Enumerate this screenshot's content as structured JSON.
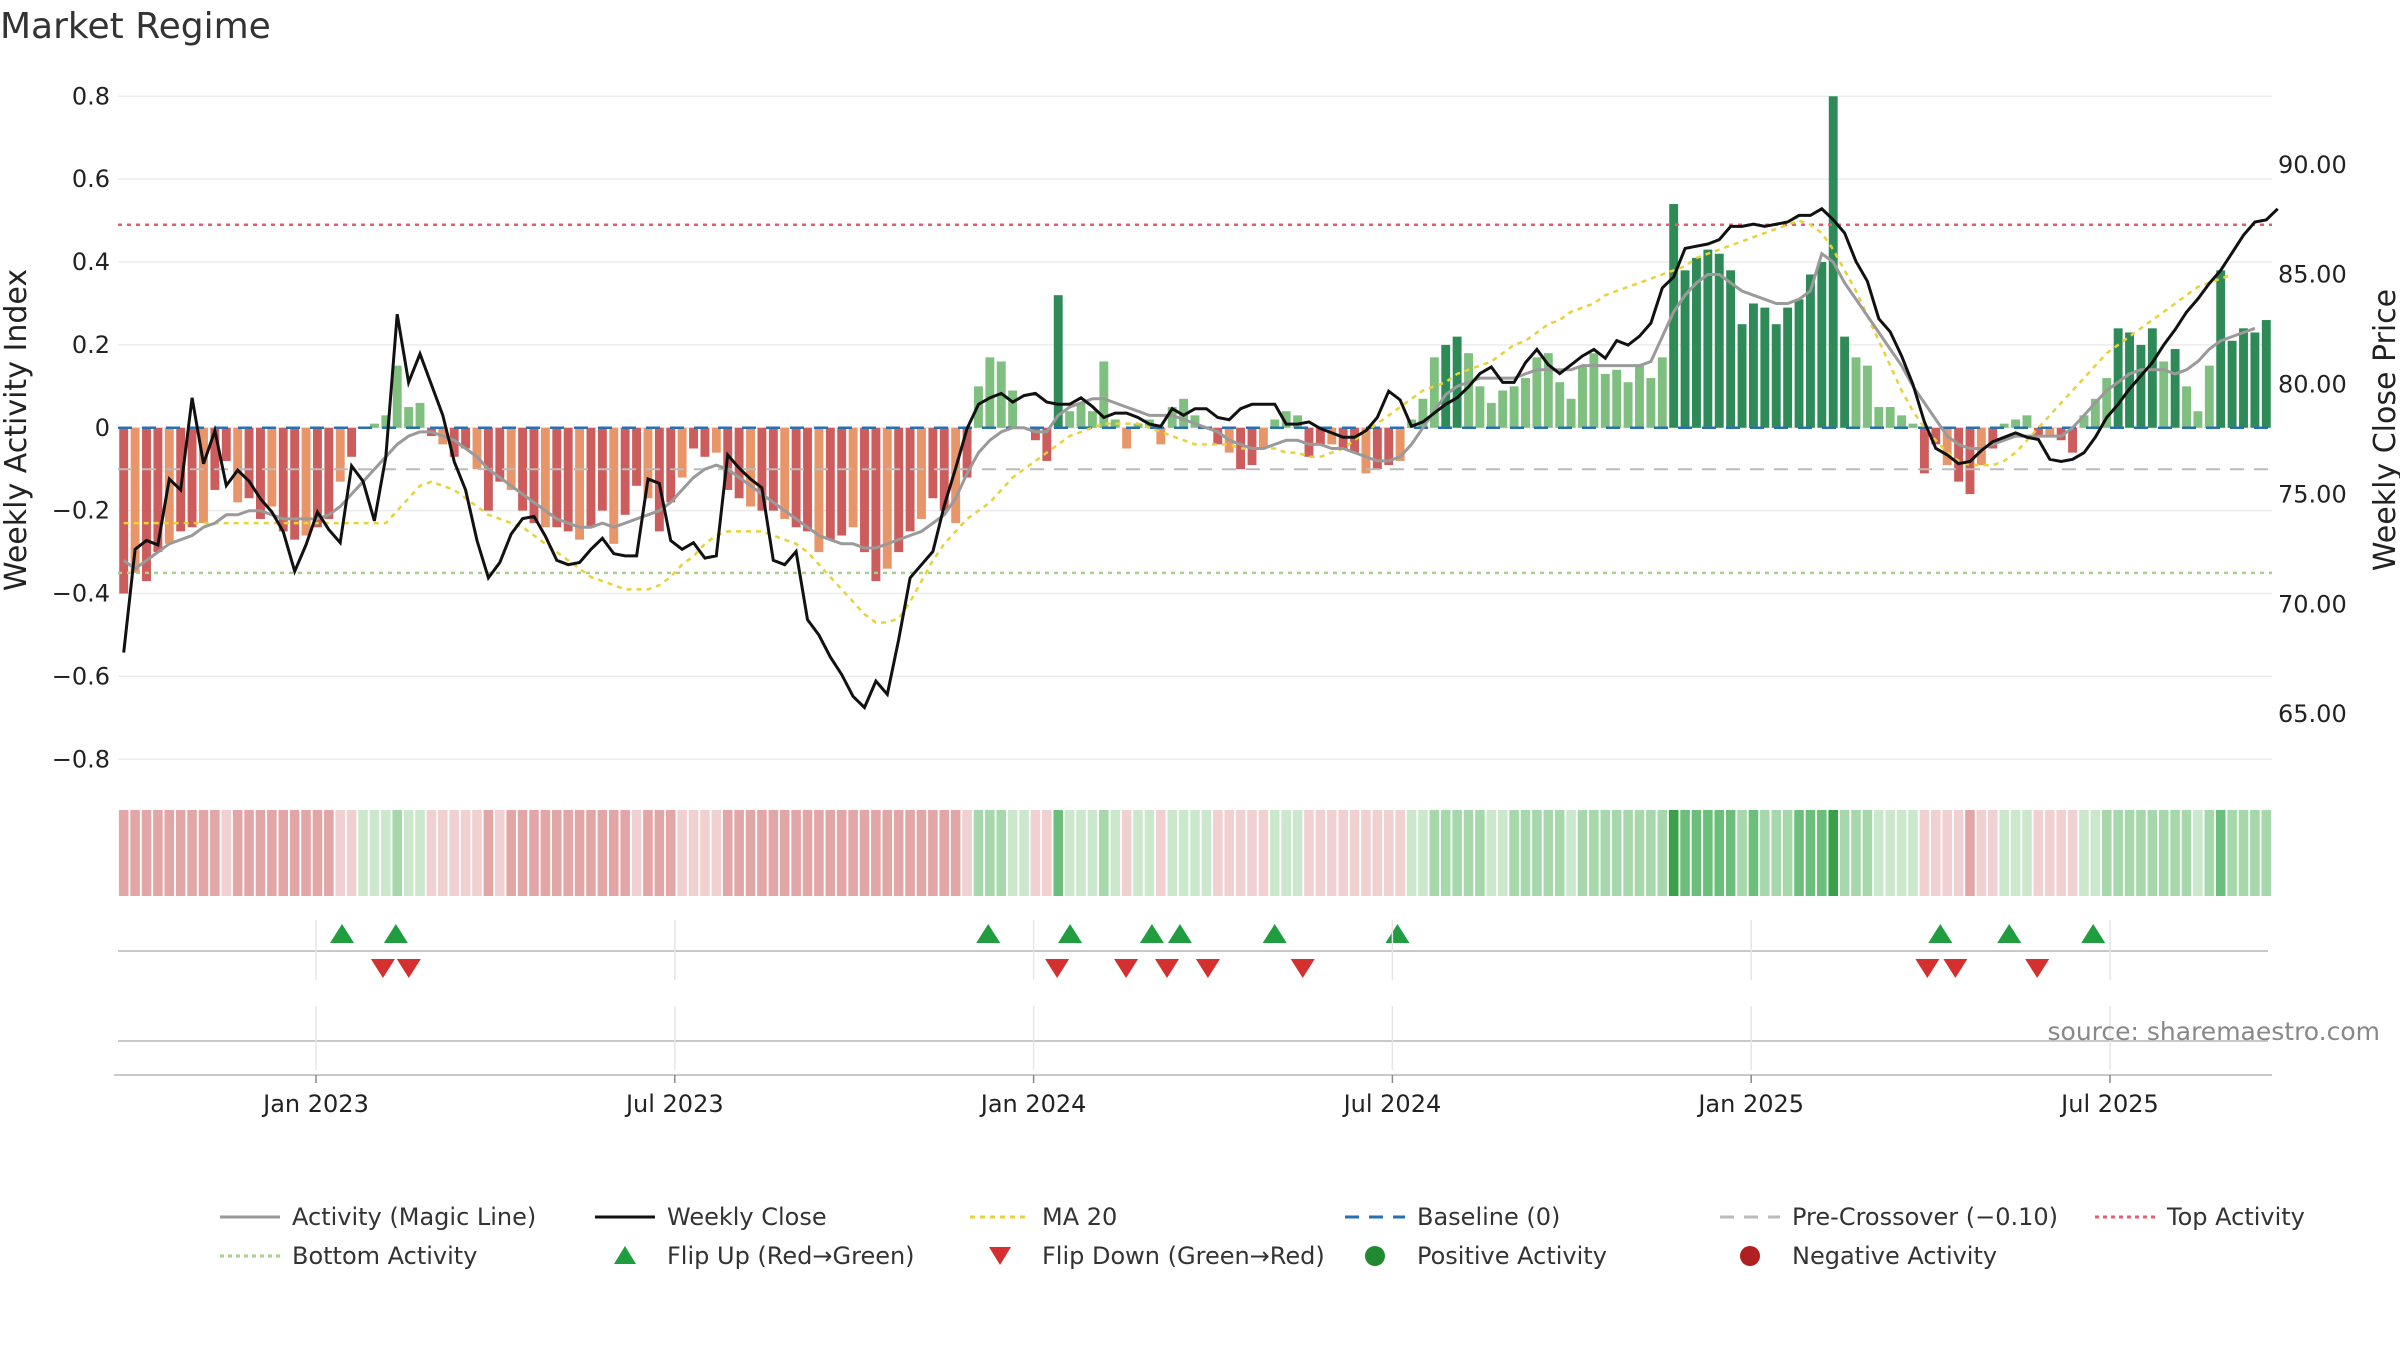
{
  "chart_data": {
    "type": "bar",
    "title": "Market Regime",
    "ylabel_left": "Weekly Activity Index",
    "ylabel_right": "Weekly Close Price",
    "left_ylim": [
      -0.85,
      0.82
    ],
    "right_ylim": [
      62.0,
      93.5
    ],
    "left_ticks": [
      "0.8",
      "0.6",
      "0.4",
      "0.2",
      "0",
      "−0.2",
      "−0.4",
      "−0.6",
      "−0.8"
    ],
    "right_ticks": [
      "65.00",
      "70.00",
      "75.00",
      "80.00",
      "85.00",
      "90.00"
    ],
    "x_ticks": [
      "Jan 2023",
      "Jul 2023",
      "Jan 2024",
      "Jul 2024",
      "Jan 2025",
      "Jul 2025"
    ],
    "reference_lines": {
      "baseline": 0,
      "pre_crossover": -0.1,
      "top_activity": 0.49,
      "bottom_activity": -0.35
    },
    "activity": [
      -0.4,
      -0.35,
      -0.37,
      -0.3,
      -0.28,
      -0.25,
      -0.24,
      -0.23,
      -0.15,
      -0.08,
      -0.18,
      -0.17,
      -0.22,
      -0.19,
      -0.25,
      -0.27,
      -0.26,
      -0.24,
      -0.22,
      -0.13,
      -0.07,
      0.0,
      0.01,
      0.03,
      0.15,
      0.05,
      0.06,
      -0.02,
      -0.04,
      -0.07,
      -0.05,
      -0.1,
      -0.2,
      -0.13,
      -0.15,
      -0.2,
      -0.23,
      -0.24,
      -0.24,
      -0.25,
      -0.27,
      -0.24,
      -0.2,
      -0.28,
      -0.21,
      -0.14,
      -0.17,
      -0.25,
      -0.18,
      -0.12,
      -0.05,
      -0.07,
      -0.06,
      -0.15,
      -0.17,
      -0.19,
      -0.2,
      -0.2,
      -0.22,
      -0.24,
      -0.25,
      -0.3,
      -0.27,
      -0.26,
      -0.24,
      -0.3,
      -0.37,
      -0.34,
      -0.3,
      -0.25,
      -0.22,
      -0.17,
      -0.2,
      -0.23,
      -0.12,
      0.1,
      0.17,
      0.16,
      0.09,
      0.0,
      -0.03,
      -0.08,
      0.32,
      0.04,
      0.06,
      0.04,
      0.16,
      0.02,
      -0.05,
      0.01,
      0.02,
      -0.04,
      0.05,
      0.07,
      0.03,
      0.0,
      -0.04,
      -0.06,
      -0.1,
      -0.09,
      -0.05,
      0.02,
      0.04,
      0.03,
      -0.07,
      -0.04,
      -0.04,
      -0.05,
      -0.06,
      -0.11,
      -0.1,
      -0.09,
      -0.08,
      0.02,
      0.07,
      0.17,
      0.2,
      0.22,
      0.18,
      0.1,
      0.06,
      0.09,
      0.1,
      0.12,
      0.17,
      0.18,
      0.11,
      0.07,
      0.15,
      0.18,
      0.13,
      0.14,
      0.11,
      0.15,
      0.12,
      0.17,
      0.54,
      0.38,
      0.41,
      0.43,
      0.42,
      0.38,
      0.25,
      0.3,
      0.29,
      0.25,
      0.29,
      0.31,
      0.37,
      0.4,
      0.8,
      0.22,
      0.17,
      0.15,
      0.05,
      0.05,
      0.03,
      0.01,
      -0.11,
      -0.04,
      -0.09,
      -0.13,
      -0.16,
      -0.09,
      -0.05,
      0.01,
      0.02,
      0.03,
      -0.02,
      -0.02,
      -0.03,
      -0.06,
      0.03,
      0.07,
      0.12,
      0.24,
      0.23,
      0.2,
      0.24,
      0.16,
      0.19,
      0.1,
      0.04,
      0.15,
      0.38,
      0.21,
      0.24,
      0.23,
      0.26
    ],
    "activity_magic_line": [
      -0.32,
      -0.34,
      -0.32,
      -0.3,
      -0.28,
      -0.27,
      -0.26,
      -0.24,
      -0.23,
      -0.21,
      -0.21,
      -0.2,
      -0.2,
      -0.21,
      -0.22,
      -0.22,
      -0.22,
      -0.22,
      -0.21,
      -0.19,
      -0.16,
      -0.13,
      -0.1,
      -0.07,
      -0.04,
      -0.02,
      -0.01,
      -0.01,
      -0.02,
      -0.03,
      -0.05,
      -0.07,
      -0.1,
      -0.12,
      -0.14,
      -0.16,
      -0.18,
      -0.2,
      -0.22,
      -0.23,
      -0.24,
      -0.24,
      -0.23,
      -0.24,
      -0.23,
      -0.22,
      -0.21,
      -0.2,
      -0.18,
      -0.15,
      -0.12,
      -0.1,
      -0.09,
      -0.1,
      -0.12,
      -0.14,
      -0.16,
      -0.18,
      -0.2,
      -0.22,
      -0.24,
      -0.26,
      -0.27,
      -0.28,
      -0.28,
      -0.29,
      -0.29,
      -0.28,
      -0.27,
      -0.26,
      -0.25,
      -0.23,
      -0.21,
      -0.17,
      -0.11,
      -0.06,
      -0.03,
      -0.01,
      0.0,
      0.0,
      -0.01,
      -0.01,
      0.03,
      0.05,
      0.06,
      0.07,
      0.07,
      0.06,
      0.05,
      0.04,
      0.03,
      0.03,
      0.03,
      0.02,
      0.01,
      0.0,
      -0.01,
      -0.03,
      -0.04,
      -0.05,
      -0.05,
      -0.04,
      -0.03,
      -0.03,
      -0.04,
      -0.04,
      -0.05,
      -0.05,
      -0.06,
      -0.07,
      -0.08,
      -0.08,
      -0.07,
      -0.04,
      0.0,
      0.04,
      0.08,
      0.1,
      0.11,
      0.12,
      0.12,
      0.12,
      0.12,
      0.13,
      0.14,
      0.14,
      0.14,
      0.14,
      0.15,
      0.15,
      0.15,
      0.15,
      0.15,
      0.15,
      0.16,
      0.22,
      0.28,
      0.32,
      0.35,
      0.37,
      0.37,
      0.35,
      0.33,
      0.32,
      0.31,
      0.3,
      0.3,
      0.31,
      0.33,
      0.42,
      0.4,
      0.35,
      0.31,
      0.27,
      0.23,
      0.19,
      0.15,
      0.1,
      0.06,
      0.02,
      -0.02,
      -0.04,
      -0.05,
      -0.05,
      -0.04,
      -0.03,
      -0.02,
      -0.02,
      -0.02,
      -0.02,
      -0.02,
      0.0,
      0.03,
      0.06,
      0.09,
      0.11,
      0.13,
      0.14,
      0.14,
      0.14,
      0.13,
      0.14,
      0.16,
      0.19,
      0.21,
      0.22,
      0.23,
      0.24
    ],
    "weekly_close": [
      67.8,
      72.5,
      72.9,
      72.7,
      75.7,
      75.2,
      79.4,
      76.4,
      77.9,
      75.4,
      76.1,
      75.6,
      74.8,
      74.2,
      73.3,
      71.5,
      72.7,
      74.2,
      73.4,
      72.8,
      76.3,
      75.6,
      73.8,
      76.7,
      83.2,
      80.1,
      81.4,
      80.0,
      78.6,
      76.5,
      75.2,
      72.9,
      71.2,
      71.9,
      73.2,
      73.9,
      74.0,
      73.1,
      72.0,
      71.8,
      71.9,
      72.5,
      73.0,
      72.3,
      72.2,
      72.2,
      75.7,
      75.5,
      72.9,
      72.5,
      72.8,
      72.1,
      72.2,
      76.8,
      76.2,
      75.7,
      75.3,
      72.0,
      71.8,
      72.4,
      69.3,
      68.6,
      67.6,
      66.8,
      65.8,
      65.3,
      66.5,
      65.9,
      68.4,
      71.2,
      71.8,
      72.4,
      74.5,
      76.2,
      78.0,
      79.1,
      79.4,
      79.6,
      79.2,
      79.5,
      79.6,
      79.2,
      79.1,
      79.1,
      79.4,
      79.0,
      78.5,
      78.7,
      78.7,
      78.5,
      78.2,
      78.1,
      78.9,
      78.6,
      78.9,
      78.9,
      78.5,
      78.4,
      78.9,
      79.1,
      79.1,
      79.1,
      78.2,
      78.2,
      78.3,
      78.0,
      77.8,
      77.6,
      77.6,
      77.9,
      78.5,
      79.7,
      79.3,
      78.1,
      78.3,
      78.7,
      79.1,
      79.4,
      79.9,
      80.5,
      80.8,
      80.1,
      80.1,
      81.0,
      81.6,
      80.9,
      80.5,
      80.9,
      81.3,
      81.6,
      81.2,
      82.0,
      81.8,
      82.2,
      82.8,
      84.4,
      84.9,
      86.2,
      86.3,
      86.4,
      86.6,
      87.2,
      87.2,
      87.3,
      87.2,
      87.3,
      87.4,
      87.7,
      87.7,
      88.0,
      87.5,
      86.9,
      85.6,
      84.7,
      83.0,
      82.4,
      81.3,
      80.0,
      78.3,
      77.1,
      76.8,
      76.4,
      76.5,
      77.0,
      77.4,
      77.6,
      77.8,
      77.6,
      77.5,
      76.6,
      76.5,
      76.6,
      76.9,
      77.6,
      78.5,
      79.1,
      79.8,
      80.4,
      81.0,
      81.8,
      82.5,
      83.3,
      83.9,
      84.6,
      85.2,
      86.0,
      86.8,
      87.4,
      87.5,
      88.0
    ],
    "ma20": [
      -0.23,
      -0.23,
      -0.23,
      -0.23,
      -0.23,
      -0.23,
      -0.23,
      -0.23,
      -0.23,
      -0.23,
      -0.23,
      -0.23,
      -0.23,
      -0.23,
      -0.23,
      -0.23,
      -0.23,
      -0.23,
      -0.23,
      -0.23,
      -0.23,
      -0.23,
      -0.23,
      -0.23,
      -0.2,
      -0.17,
      -0.14,
      -0.13,
      -0.14,
      -0.15,
      -0.17,
      -0.19,
      -0.21,
      -0.22,
      -0.23,
      -0.24,
      -0.26,
      -0.28,
      -0.3,
      -0.32,
      -0.34,
      -0.36,
      -0.37,
      -0.38,
      -0.39,
      -0.39,
      -0.39,
      -0.38,
      -0.36,
      -0.33,
      -0.31,
      -0.28,
      -0.26,
      -0.25,
      -0.25,
      -0.25,
      -0.25,
      -0.26,
      -0.27,
      -0.28,
      -0.3,
      -0.33,
      -0.36,
      -0.39,
      -0.42,
      -0.45,
      -0.47,
      -0.47,
      -0.46,
      -0.42,
      -0.37,
      -0.32,
      -0.28,
      -0.25,
      -0.22,
      -0.2,
      -0.18,
      -0.15,
      -0.12,
      -0.1,
      -0.08,
      -0.06,
      -0.04,
      -0.02,
      -0.01,
      0.0,
      0.01,
      0.01,
      0.01,
      0.01,
      0.0,
      -0.01,
      -0.02,
      -0.03,
      -0.04,
      -0.04,
      -0.04,
      -0.04,
      -0.05,
      -0.05,
      -0.05,
      -0.05,
      -0.06,
      -0.06,
      -0.07,
      -0.07,
      -0.06,
      -0.05,
      -0.03,
      -0.01,
      0.01,
      0.03,
      0.05,
      0.07,
      0.09,
      0.1,
      0.11,
      0.13,
      0.14,
      0.15,
      0.16,
      0.18,
      0.2,
      0.21,
      0.23,
      0.25,
      0.26,
      0.28,
      0.29,
      0.3,
      0.32,
      0.33,
      0.34,
      0.35,
      0.36,
      0.37,
      0.38,
      0.39,
      0.41,
      0.42,
      0.43,
      0.44,
      0.45,
      0.46,
      0.47,
      0.48,
      0.49,
      0.5,
      0.49,
      0.47,
      0.43,
      0.38,
      0.33,
      0.27,
      0.21,
      0.15,
      0.09,
      0.04,
      0.0,
      -0.03,
      -0.06,
      -0.08,
      -0.09,
      -0.09,
      -0.09,
      -0.08,
      -0.06,
      -0.03,
      0.0,
      0.03,
      0.06,
      0.09,
      0.12,
      0.15,
      0.18,
      0.2,
      0.22,
      0.24,
      0.26,
      0.28,
      0.3,
      0.32,
      0.34,
      0.35,
      0.36,
      0.37
    ],
    "flip_up_positions": [
      0.104,
      0.129,
      0.404,
      0.442,
      0.48,
      0.493,
      0.537,
      0.594,
      0.846,
      0.878,
      0.917
    ],
    "flip_down_positions": [
      0.123,
      0.135,
      0.436,
      0.468,
      0.487,
      0.506,
      0.55,
      0.84,
      0.853,
      0.891
    ],
    "source_text": "source: sharemaestro.com",
    "legend": [
      {
        "label": "Activity (Magic Line)",
        "kind": "line",
        "color": "#9a9a9a",
        "dash": ""
      },
      {
        "label": "Weekly Close",
        "kind": "line",
        "color": "#111111",
        "dash": ""
      },
      {
        "label": "MA 20",
        "kind": "line",
        "color": "#e8d23a",
        "dash": "5,5"
      },
      {
        "label": "Baseline (0)",
        "kind": "line",
        "color": "#2a6fb0",
        "dash": "14,10"
      },
      {
        "label": "Pre-Crossover (−0.10)",
        "kind": "line",
        "color": "#bbbbbb",
        "dash": "14,10"
      },
      {
        "label": "Top Activity",
        "kind": "line",
        "color": "#e06070",
        "dash": "4,4"
      },
      {
        "label": "Bottom Activity",
        "kind": "line",
        "color": "#a8d08d",
        "dash": "4,4"
      },
      {
        "label": "Flip Up (Red→Green)",
        "kind": "up",
        "color": "#1f9d3f"
      },
      {
        "label": "Flip Down (Green→Red)",
        "kind": "down",
        "color": "#d62f2f"
      },
      {
        "label": "Positive Activity",
        "kind": "dot",
        "color": "#1f8a2f"
      },
      {
        "label": "Negative Activity",
        "kind": "dot",
        "color": "#b02020"
      }
    ]
  }
}
